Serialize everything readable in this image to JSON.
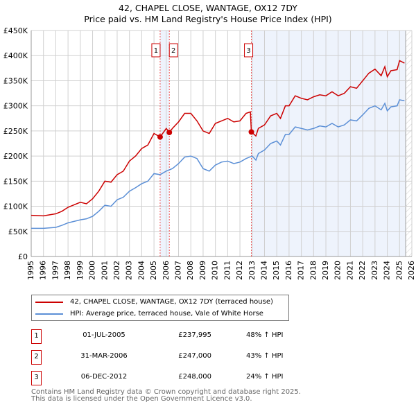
{
  "chart_data": {
    "type": "line",
    "title": "42, CHAPEL CLOSE, WANTAGE, OX12 7DY",
    "subtitle": "Price paid vs. HM Land Registry's House Price Index (HPI)",
    "xlim": [
      1995,
      2026
    ],
    "ylim": [
      0,
      450000
    ],
    "x_ticks": [
      "1995",
      "1996",
      "1997",
      "1998",
      "1999",
      "2000",
      "2001",
      "2002",
      "2003",
      "2004",
      "2005",
      "2006",
      "2007",
      "2008",
      "2009",
      "2010",
      "2011",
      "2012",
      "2013",
      "2014",
      "2015",
      "2016",
      "2017",
      "2018",
      "2019",
      "2020",
      "2021",
      "2022",
      "2023",
      "2024",
      "2025",
      "2026"
    ],
    "y_ticks": [
      {
        "v": 0,
        "label": "£0"
      },
      {
        "v": 50000,
        "label": "£50K"
      },
      {
        "v": 100000,
        "label": "£100K"
      },
      {
        "v": 150000,
        "label": "£150K"
      },
      {
        "v": 200000,
        "label": "£200K"
      },
      {
        "v": 250000,
        "label": "£250K"
      },
      {
        "v": 300000,
        "label": "£300K"
      },
      {
        "v": 350000,
        "label": "£350K"
      },
      {
        "v": 400000,
        "label": "£400K"
      },
      {
        "v": 450000,
        "label": "£450K"
      }
    ],
    "grid": true,
    "colors": {
      "price": "#cc0000",
      "hpi": "#5b8fd6",
      "shade": "#eef3fc"
    },
    "shaded_ranges": [
      [
        2005.5,
        2006.25
      ],
      [
        2012.93,
        2025.5
      ]
    ],
    "hatched_from": 2025.5,
    "series": [
      {
        "name": "42, CHAPEL CLOSE, WANTAGE, OX12 7DY (terraced house)",
        "color": "#cc0000",
        "x": [
          1995,
          1996,
          1997,
          1997.5,
          1998,
          1999,
          1999.5,
          2000,
          2000.5,
          2001,
          2001.5,
          2002,
          2002.5,
          2003,
          2003.5,
          2004,
          2004.5,
          2005,
          2005.5,
          2006,
          2006.25,
          2006.5,
          2007,
          2007.5,
          2008,
          2008.5,
          2009,
          2009.5,
          2010,
          2010.5,
          2011,
          2011.5,
          2012,
          2012.5,
          2012.85,
          2012.93,
          2013.3,
          2013.5,
          2014,
          2014.5,
          2015,
          2015.3,
          2015.7,
          2016,
          2016.5,
          2017,
          2017.5,
          2018,
          2018.5,
          2019,
          2019.5,
          2020,
          2020.5,
          2021,
          2021.5,
          2022,
          2022.5,
          2023,
          2023.5,
          2023.8,
          2024,
          2024.3,
          2024.8,
          2025,
          2025.4
        ],
        "y": [
          82000,
          81000,
          85000,
          90000,
          98000,
          108000,
          105000,
          115000,
          130000,
          150000,
          148000,
          163000,
          170000,
          190000,
          200000,
          215000,
          222000,
          245000,
          237995,
          255000,
          247000,
          255000,
          268000,
          285000,
          285000,
          270000,
          250000,
          245000,
          265000,
          270000,
          275000,
          268000,
          270000,
          285000,
          288000,
          248000,
          240000,
          255000,
          262000,
          280000,
          285000,
          275000,
          300000,
          300000,
          320000,
          315000,
          312000,
          318000,
          322000,
          320000,
          328000,
          320000,
          325000,
          338000,
          335000,
          350000,
          365000,
          373000,
          360000,
          378000,
          358000,
          370000,
          372000,
          390000,
          385000
        ]
      },
      {
        "name": "HPI: Average price, terraced house, Vale of White Horse",
        "color": "#5b8fd6",
        "x": [
          1995,
          1996,
          1997,
          1997.5,
          1998,
          1999,
          1999.5,
          2000,
          2000.5,
          2001,
          2001.5,
          2002,
          2002.5,
          2003,
          2003.5,
          2004,
          2004.5,
          2005,
          2005.5,
          2006,
          2006.5,
          2007,
          2007.5,
          2008,
          2008.5,
          2009,
          2009.5,
          2010,
          2010.5,
          2011,
          2011.5,
          2012,
          2012.5,
          2013,
          2013.3,
          2013.5,
          2014,
          2014.5,
          2015,
          2015.3,
          2015.7,
          2016,
          2016.5,
          2017,
          2017.5,
          2018,
          2018.5,
          2019,
          2019.5,
          2020,
          2020.5,
          2021,
          2021.5,
          2022,
          2022.5,
          2023,
          2023.5,
          2023.8,
          2024,
          2024.3,
          2024.8,
          2025,
          2025.4
        ],
        "y": [
          56000,
          56000,
          58000,
          62000,
          67000,
          73000,
          75000,
          80000,
          90000,
          102000,
          100000,
          113000,
          118000,
          130000,
          137000,
          145000,
          150000,
          165000,
          163000,
          170000,
          175000,
          185000,
          198000,
          200000,
          195000,
          175000,
          170000,
          182000,
          188000,
          190000,
          185000,
          188000,
          195000,
          200000,
          192000,
          205000,
          212000,
          225000,
          230000,
          222000,
          243000,
          243000,
          258000,
          255000,
          252000,
          255000,
          260000,
          258000,
          265000,
          258000,
          262000,
          272000,
          270000,
          282000,
          295000,
          300000,
          292000,
          305000,
          290000,
          298000,
          300000,
          312000,
          310000
        ]
      }
    ],
    "sales": [
      {
        "label": "1",
        "x": 2005.5,
        "y": 237995,
        "date": "01-JUL-2005",
        "price": "£237,995",
        "hpi": "48% ↑ HPI"
      },
      {
        "label": "2",
        "x": 2006.25,
        "y": 247000,
        "date": "31-MAR-2006",
        "price": "£247,000",
        "hpi": "43% ↑ HPI"
      },
      {
        "label": "3",
        "x": 2012.93,
        "y": 248000,
        "date": "06-DEC-2012",
        "price": "£248,000",
        "hpi": "24% ↑ HPI"
      }
    ],
    "legend_placement": "below"
  },
  "footer": {
    "line1": "Contains HM Land Registry data © Crown copyright and database right 2025.",
    "line2": "This data is licensed under the Open Government Licence v3.0."
  }
}
